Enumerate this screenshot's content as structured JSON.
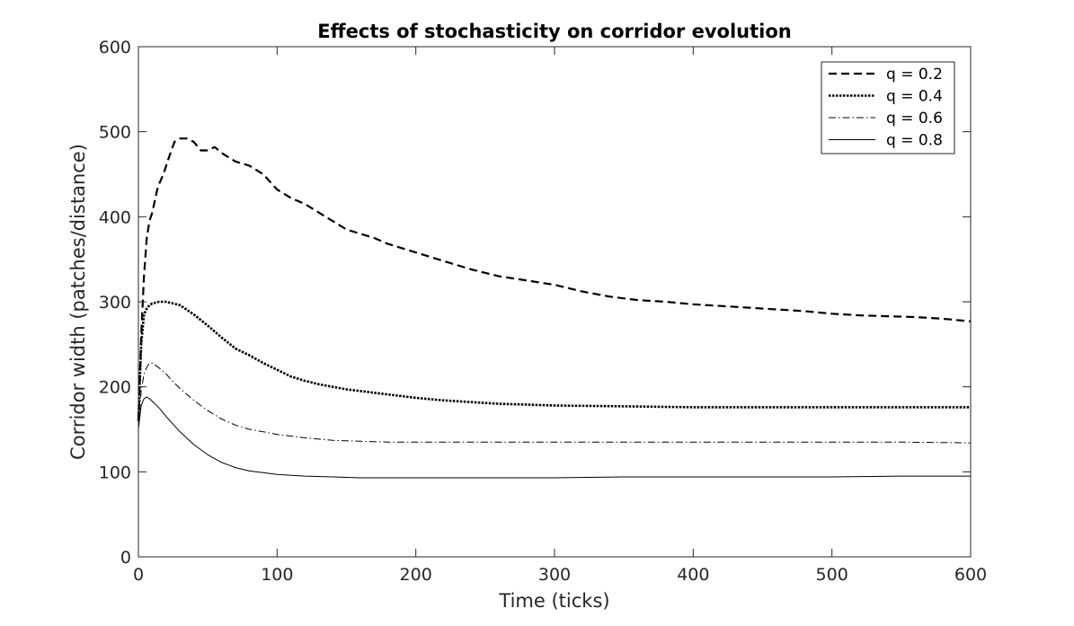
{
  "chart_data": {
    "type": "line",
    "title": "Effects of stochasticity on corridor evolution",
    "xlabel": "Time (ticks)",
    "ylabel": "Corridor width (patches/distance)",
    "xlim": [
      0,
      600
    ],
    "ylim": [
      0,
      600
    ],
    "xticks": [
      0,
      100,
      200,
      300,
      400,
      500,
      600
    ],
    "yticks": [
      0,
      100,
      200,
      300,
      400,
      500,
      600
    ],
    "grid": false,
    "legend_location": "top-right",
    "series": [
      {
        "name": "q = 0.2",
        "style": "dashed",
        "x": [
          0,
          2,
          4,
          6,
          8,
          10,
          14,
          18,
          22,
          26,
          30,
          35,
          40,
          45,
          50,
          55,
          60,
          70,
          80,
          90,
          100,
          110,
          120,
          130,
          140,
          150,
          160,
          170,
          180,
          200,
          220,
          240,
          260,
          280,
          300,
          320,
          340,
          360,
          380,
          400,
          420,
          440,
          460,
          480,
          500,
          520,
          540,
          560,
          580,
          600
        ],
        "y": [
          160,
          260,
          330,
          375,
          395,
          405,
          435,
          450,
          470,
          488,
          492,
          492,
          488,
          478,
          478,
          482,
          475,
          465,
          460,
          450,
          432,
          422,
          415,
          405,
          395,
          385,
          380,
          375,
          368,
          358,
          348,
          338,
          330,
          325,
          320,
          312,
          306,
          302,
          300,
          297,
          295,
          293,
          291,
          289,
          286,
          284,
          283,
          282,
          280,
          277
        ]
      },
      {
        "name": "q = 0.4",
        "style": "dotted",
        "x": [
          0,
          2,
          4,
          6,
          8,
          10,
          15,
          20,
          25,
          30,
          40,
          50,
          60,
          70,
          80,
          90,
          100,
          110,
          120,
          130,
          140,
          150,
          160,
          180,
          200,
          220,
          240,
          260,
          280,
          300,
          350,
          400,
          450,
          500,
          550,
          600
        ],
        "y": [
          160,
          250,
          285,
          292,
          296,
          298,
          300,
          300,
          298,
          296,
          285,
          272,
          258,
          245,
          237,
          228,
          220,
          212,
          207,
          203,
          200,
          197,
          195,
          191,
          187,
          184,
          182,
          180,
          179,
          178,
          177,
          176,
          176,
          176,
          176,
          176
        ]
      },
      {
        "name": "q = 0.6",
        "style": "dashdot",
        "x": [
          0,
          2,
          4,
          6,
          8,
          10,
          15,
          20,
          25,
          30,
          40,
          50,
          60,
          70,
          80,
          90,
          100,
          120,
          140,
          160,
          180,
          200,
          250,
          300,
          350,
          400,
          450,
          500,
          550,
          600
        ],
        "y": [
          155,
          195,
          215,
          223,
          228,
          228,
          222,
          215,
          206,
          198,
          184,
          172,
          162,
          155,
          150,
          147,
          144,
          140,
          137,
          136,
          135,
          135,
          135,
          135,
          135,
          135,
          135,
          135,
          135,
          134
        ]
      },
      {
        "name": "q = 0.8",
        "style": "solid",
        "x": [
          0,
          2,
          4,
          6,
          8,
          10,
          15,
          20,
          25,
          30,
          40,
          50,
          60,
          70,
          80,
          90,
          100,
          120,
          140,
          160,
          180,
          200,
          250,
          300,
          350,
          400,
          450,
          500,
          550,
          600
        ],
        "y": [
          150,
          178,
          186,
          188,
          186,
          183,
          175,
          165,
          156,
          147,
          132,
          120,
          111,
          105,
          101,
          99,
          97,
          95,
          94,
          93,
          93,
          93,
          93,
          93,
          94,
          94,
          94,
          94,
          95,
          95
        ]
      }
    ]
  }
}
